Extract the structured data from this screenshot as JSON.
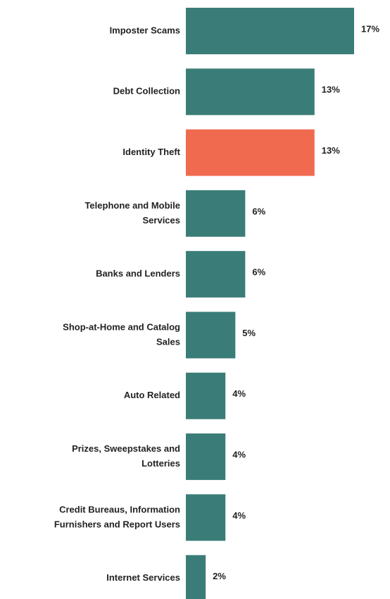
{
  "chart_data": {
    "type": "bar",
    "orientation": "horizontal",
    "title": "",
    "xlabel": "",
    "ylabel": "",
    "grid": false,
    "xlim": [
      0,
      17
    ],
    "categories": [
      [
        "Imposter Scams"
      ],
      [
        "Debt Collection"
      ],
      [
        "Identity Theft"
      ],
      [
        "Telephone and Mobile",
        "Services"
      ],
      [
        "Banks and Lenders"
      ],
      [
        "Shop-at-Home and Catalog",
        "Sales"
      ],
      [
        "Auto Related"
      ],
      [
        "Prizes, Sweepstakes and",
        "Lotteries"
      ],
      [
        "Credit Bureaus, Information",
        "Furnishers and Report Users"
      ],
      [
        "Internet Services"
      ]
    ],
    "values": [
      17,
      13,
      13,
      6,
      6,
      5,
      4,
      4,
      4,
      2
    ],
    "value_labels": [
      "17%",
      "13%",
      "13%",
      "6%",
      "6%",
      "5%",
      "4%",
      "4%",
      "4%",
      "2%"
    ],
    "colors": [
      "#3a7c78",
      "#3a7c78",
      "#f06a4f",
      "#3a7c78",
      "#3a7c78",
      "#3a7c78",
      "#3a7c78",
      "#3a7c78",
      "#3a7c78",
      "#3a7c78"
    ]
  }
}
